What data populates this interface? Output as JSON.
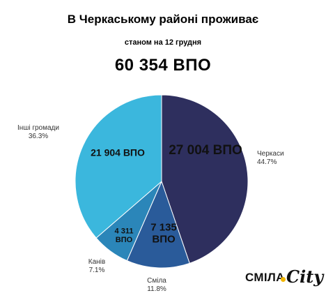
{
  "header": {
    "title": "В Черкаському районі проживає",
    "subtitle": "станом на 12  грудня",
    "total": "60 354  ВПО"
  },
  "chart_data": {
    "type": "pie",
    "slices": [
      {
        "name": "Черкаси",
        "percent_label": "44.7%",
        "value": 44.7,
        "inner_label": [
          "27 004  ВПО"
        ],
        "color": "#2e2f5e"
      },
      {
        "name": "Сміла",
        "percent_label": "11.8%",
        "value": 11.8,
        "inner_label": [
          "7 135",
          "ВПО"
        ],
        "color": "#2a5b9a"
      },
      {
        "name": "Канів",
        "percent_label": "7.1%",
        "value": 7.1,
        "inner_label": [
          "4 311",
          "ВПО"
        ],
        "color": "#2b86b9"
      },
      {
        "name": "Інші громади",
        "percent_label": "36.3%",
        "value": 36.3,
        "inner_label": [
          "21 904 ВПО"
        ],
        "color": "#3bb7dd"
      }
    ],
    "start": "12 o'clock",
    "direction": "clockwise",
    "legend": "none"
  },
  "logo": {
    "text_main": "СМІЛА",
    "text_script": "City",
    "accent_color": "#f2b600"
  }
}
